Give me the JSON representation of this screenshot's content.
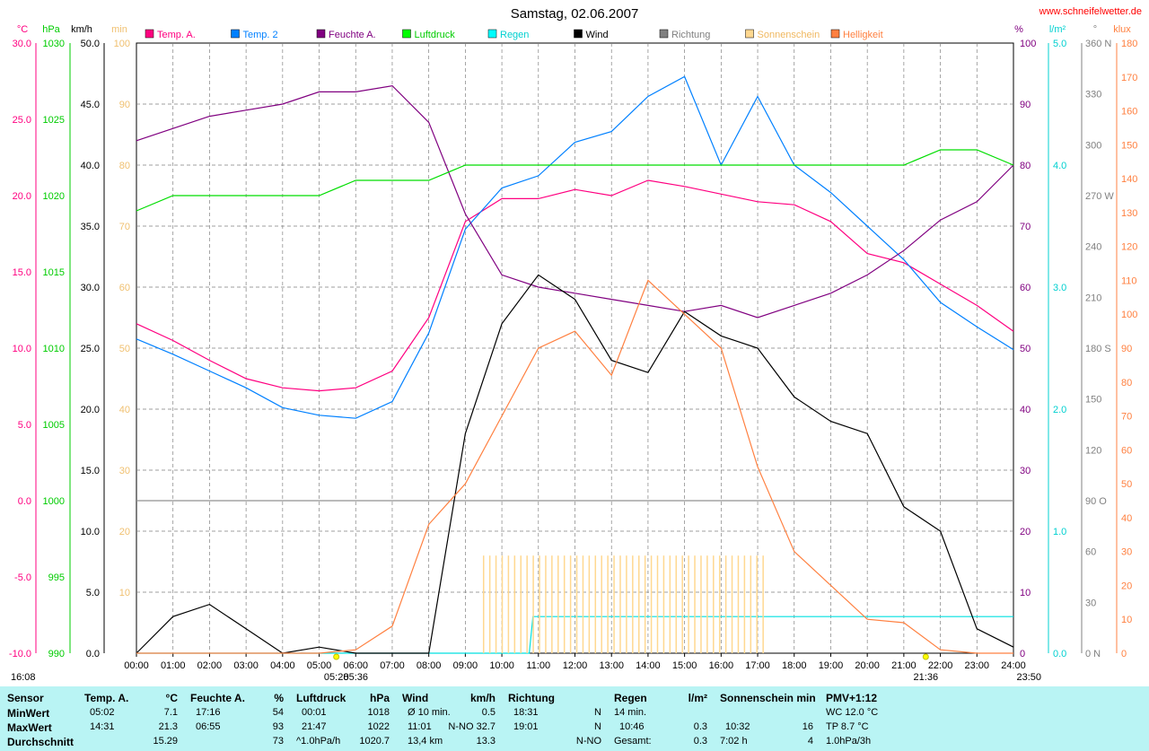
{
  "title": "Samstag, 02.06.2007",
  "site": "www.schneifelwetter.de",
  "legend": [
    {
      "label": "Temp. A.",
      "color": "#ff0080"
    },
    {
      "label": "Temp. 2",
      "color": "#0080ff"
    },
    {
      "label": "Feuchte A.",
      "color": "#800080"
    },
    {
      "label": "Luftdruck",
      "color": "#00ff00"
    },
    {
      "label": "Regen",
      "color": "#00ffff"
    },
    {
      "label": "Wind",
      "color": "#000000"
    },
    {
      "label": "Richtung",
      "color": "#808080"
    },
    {
      "label": "Sonnenschein",
      "color": "#ffd890"
    },
    {
      "label": "Helligkeit",
      "color": "#ff8040"
    }
  ],
  "axes_units": {
    "temp": "°C",
    "press": "hPa",
    "wind": "km/h",
    "sun": "min",
    "hum": "%",
    "rain": "l/m²",
    "dir": "°",
    "lux": "klux"
  },
  "axes_ticks": {
    "temp": [
      "30.0",
      "25.0",
      "20.0",
      "15.0",
      "10.0",
      "5.0",
      "0.0",
      "-5.0",
      "-10.0"
    ],
    "press": [
      "1030",
      "1025",
      "1020",
      "1015",
      "1010",
      "1005",
      "1000",
      "995",
      "990"
    ],
    "wind": [
      "50.0",
      "45.0",
      "40.0",
      "35.0",
      "30.0",
      "25.0",
      "20.0",
      "15.0",
      "10.0",
      "5.0",
      "0.0"
    ],
    "sun": [
      "100",
      "90",
      "80",
      "70",
      "60",
      "50",
      "40",
      "30",
      "20",
      "10"
    ],
    "hum": [
      "100",
      "90",
      "80",
      "70",
      "60",
      "50",
      "40",
      "30",
      "20",
      "10",
      "0"
    ],
    "rain": [
      "5.0",
      "4.0",
      "3.0",
      "2.0",
      "1.0",
      "0.0"
    ],
    "dir": [
      "360 N",
      "330",
      "300",
      "270 W",
      "240",
      "210",
      "180 S",
      "150",
      "120",
      "90 O",
      "60",
      "30",
      "0 N"
    ],
    "lux": [
      "180",
      "170",
      "160",
      "150",
      "140",
      "130",
      "120",
      "110",
      "100",
      "90",
      "80",
      "70",
      "60",
      "50",
      "40",
      "30",
      "20",
      "10",
      "0"
    ],
    "time": [
      "00:00",
      "01:00",
      "02:00",
      "03:00",
      "04:00",
      "05:00",
      "06:00",
      "07:00",
      "08:00",
      "09:00",
      "10:00",
      "11:00",
      "12:00",
      "13:00",
      "14:00",
      "15:00",
      "16:00",
      "17:00",
      "18:00",
      "19:00",
      "20:00",
      "21:00",
      "22:00",
      "23:00",
      "24:00"
    ]
  },
  "marks": {
    "sunrise": "05:28",
    "sunrise2": "05:36",
    "sunset": "21:36",
    "moon_left": "16:08",
    "moon_right": "23:50"
  },
  "chart_data": {
    "type": "line",
    "title": "Samstag, 02.06.2007",
    "x_unit": "hour",
    "series": [
      {
        "name": "Temp. A.",
        "unit": "°C",
        "points": [
          [
            0,
            11.6
          ],
          [
            1,
            10.5
          ],
          [
            2,
            9.2
          ],
          [
            3,
            8.0
          ],
          [
            4,
            7.4
          ],
          [
            5,
            7.2
          ],
          [
            6,
            7.4
          ],
          [
            7,
            8.5
          ],
          [
            8,
            12.0
          ],
          [
            9,
            18.3
          ],
          [
            10,
            19.8
          ],
          [
            11,
            19.8
          ],
          [
            12,
            20.4
          ],
          [
            13,
            20.0
          ],
          [
            14,
            21.0
          ],
          [
            15,
            20.6
          ],
          [
            16,
            20.1
          ],
          [
            17,
            19.6
          ],
          [
            18,
            19.4
          ],
          [
            19,
            18.3
          ],
          [
            20,
            16.2
          ],
          [
            21,
            15.6
          ],
          [
            22,
            14.2
          ],
          [
            23,
            12.8
          ],
          [
            24,
            11.1
          ]
        ]
      },
      {
        "name": "Temp. 2",
        "unit": "°C",
        "points": [
          [
            0,
            10.6
          ],
          [
            1,
            9.6
          ],
          [
            2,
            8.5
          ],
          [
            3,
            7.4
          ],
          [
            4,
            6.1
          ],
          [
            5,
            5.6
          ],
          [
            6,
            5.4
          ],
          [
            7,
            6.5
          ],
          [
            8,
            11.0
          ],
          [
            9,
            17.8
          ],
          [
            10,
            20.5
          ],
          [
            11,
            21.3
          ],
          [
            12,
            23.5
          ],
          [
            13,
            24.2
          ],
          [
            14,
            26.5
          ],
          [
            15,
            27.8
          ],
          [
            16,
            22.0
          ],
          [
            17,
            26.5
          ],
          [
            18,
            22.0
          ],
          [
            19,
            20.2
          ],
          [
            20,
            18.0
          ],
          [
            21,
            15.8
          ],
          [
            22,
            13.0
          ],
          [
            23,
            11.4
          ],
          [
            24,
            9.9
          ]
        ]
      },
      {
        "name": "Feuchte A.",
        "unit": "%",
        "points": [
          [
            0,
            84
          ],
          [
            1,
            86
          ],
          [
            2,
            88
          ],
          [
            3,
            89
          ],
          [
            4,
            90
          ],
          [
            5,
            92
          ],
          [
            6,
            92
          ],
          [
            7,
            93
          ],
          [
            8,
            87
          ],
          [
            9,
            72
          ],
          [
            10,
            62
          ],
          [
            11,
            60
          ],
          [
            12,
            59
          ],
          [
            13,
            58
          ],
          [
            14,
            57
          ],
          [
            15,
            56
          ],
          [
            16,
            57
          ],
          [
            17,
            55
          ],
          [
            18,
            57
          ],
          [
            19,
            59
          ],
          [
            20,
            62
          ],
          [
            21,
            66
          ],
          [
            22,
            71
          ],
          [
            23,
            74
          ],
          [
            24,
            80
          ]
        ]
      },
      {
        "name": "Luftdruck",
        "unit": "hPa",
        "points": [
          [
            0,
            1019
          ],
          [
            1,
            1020
          ],
          [
            2,
            1020
          ],
          [
            3,
            1020
          ],
          [
            4,
            1020
          ],
          [
            5,
            1020
          ],
          [
            6,
            1021
          ],
          [
            7,
            1021
          ],
          [
            8,
            1021
          ],
          [
            9,
            1022
          ],
          [
            10,
            1022
          ],
          [
            11,
            1022
          ],
          [
            12,
            1022
          ],
          [
            13,
            1022
          ],
          [
            14,
            1022
          ],
          [
            15,
            1022
          ],
          [
            16,
            1022
          ],
          [
            17,
            1022
          ],
          [
            18,
            1022
          ],
          [
            19,
            1022
          ],
          [
            20,
            1022
          ],
          [
            21,
            1022
          ],
          [
            22,
            1023
          ],
          [
            23,
            1023
          ],
          [
            24,
            1022
          ]
        ]
      },
      {
        "name": "Regen",
        "unit": "l/m²",
        "points": [
          [
            0,
            0
          ],
          [
            10.75,
            0
          ],
          [
            10.85,
            0.3
          ],
          [
            24,
            0.3
          ]
        ]
      },
      {
        "name": "Wind",
        "unit": "km/h",
        "points": [
          [
            0,
            0
          ],
          [
            1,
            3
          ],
          [
            2,
            4
          ],
          [
            3,
            2
          ],
          [
            4,
            0
          ],
          [
            5,
            0.5
          ],
          [
            6,
            0
          ],
          [
            7,
            0
          ],
          [
            8,
            0
          ],
          [
            9,
            18
          ],
          [
            10,
            27
          ],
          [
            11,
            31
          ],
          [
            12,
            29
          ],
          [
            13,
            24
          ],
          [
            14,
            23
          ],
          [
            15,
            28
          ],
          [
            16,
            26
          ],
          [
            17,
            25
          ],
          [
            18,
            21
          ],
          [
            19,
            19
          ],
          [
            20,
            18
          ],
          [
            21,
            12
          ],
          [
            22,
            10
          ],
          [
            23,
            2
          ],
          [
            24,
            0.5
          ]
        ]
      },
      {
        "name": "Helligkeit",
        "unit": "klux",
        "points": [
          [
            0,
            0
          ],
          [
            5,
            0
          ],
          [
            6,
            1
          ],
          [
            7,
            8
          ],
          [
            8,
            38
          ],
          [
            9,
            50
          ],
          [
            10,
            70
          ],
          [
            11,
            90
          ],
          [
            12,
            95
          ],
          [
            13,
            82
          ],
          [
            14,
            110
          ],
          [
            15,
            100
          ],
          [
            16,
            90
          ],
          [
            17,
            55
          ],
          [
            18,
            30
          ],
          [
            19,
            20
          ],
          [
            20,
            10
          ],
          [
            21,
            9
          ],
          [
            22,
            1
          ],
          [
            23,
            0
          ],
          [
            24,
            0
          ]
        ]
      },
      {
        "name": "Sonnenschein",
        "unit": "min",
        "points": [
          [
            9.5,
            16
          ],
          [
            10,
            16
          ],
          [
            11,
            16
          ],
          [
            12,
            16
          ],
          [
            13,
            16
          ],
          [
            14,
            16
          ],
          [
            15,
            16
          ],
          [
            16,
            16
          ],
          [
            17,
            16
          ]
        ]
      }
    ]
  },
  "footer": {
    "headers": [
      "Sensor",
      "Temp. A.",
      "°C",
      "Feuchte A.",
      "%",
      "Luftdruck",
      "hPa",
      "Wind",
      "km/h",
      "Richtung",
      "Regen",
      "l/m²",
      "Sonnenschein min",
      "PMV+1:12"
    ],
    "row_labels": [
      "MinWert",
      "MaxWert",
      "Durchschnitt"
    ],
    "temp": [
      [
        "05:02",
        "7.1"
      ],
      [
        "14:31",
        "21.3"
      ],
      [
        "",
        "15.29"
      ]
    ],
    "hum": [
      [
        "17:16",
        "54"
      ],
      [
        "06:55",
        "93"
      ],
      [
        "",
        "73"
      ]
    ],
    "press": [
      [
        "00:01",
        "1018"
      ],
      [
        "21:47",
        "1022"
      ],
      [
        "^1.0hPa/h",
        "1020.7"
      ]
    ],
    "wind": [
      [
        "Ø 10 min.",
        "0.5"
      ],
      [
        "11:01",
        "N-NO 32.7"
      ],
      [
        "13,4 km",
        "13.3"
      ]
    ],
    "dir": [
      [
        "18:31",
        "N"
      ],
      [
        "19:01",
        "N"
      ],
      [
        "",
        "N-NO"
      ]
    ],
    "rain": [
      [
        "14 min.",
        ""
      ],
      [
        "10:46",
        "0.3"
      ],
      [
        "Gesamt:",
        "0.3"
      ]
    ],
    "sun": [
      [
        "",
        ""
      ],
      [
        "10:32",
        "16"
      ],
      [
        "7:02 h",
        "4"
      ]
    ],
    "pmv": [
      "WC 12.0 °C",
      "TP 8.7 °C",
      "1.0hPa/3h"
    ]
  }
}
